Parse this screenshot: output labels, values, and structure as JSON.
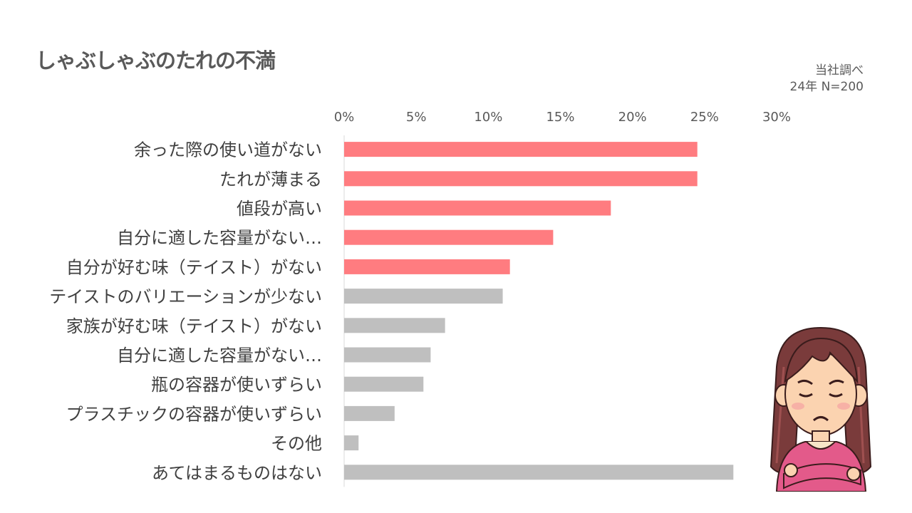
{
  "title": "しゃぶしゃぶのたれの不満",
  "source": {
    "line1": "当社調べ",
    "line2": "24年 N=200"
  },
  "colors": {
    "highlight": "#FF7C80",
    "normal": "#BFBFBF",
    "axis": "#D9D9D9"
  },
  "chart_data": {
    "type": "bar",
    "orientation": "horizontal",
    "title": "",
    "xlabel": "",
    "ylabel": "",
    "xlim": [
      0,
      30
    ],
    "xticks": [
      "0%",
      "5%",
      "10%",
      "15%",
      "20%",
      "25%",
      "30%"
    ],
    "tick_values": [
      0,
      5,
      10,
      15,
      20,
      25,
      30
    ],
    "axis_position": "top",
    "grid": false,
    "categories": [
      "余った際の使い道がない",
      "たれが薄まる",
      "値段が高い",
      "自分に適した容量がない…",
      "自分が好む味（テイスト）がない",
      "テイストのバリエーションが少ない",
      "家族が好む味（テイスト）がない",
      "自分に適した容量がない…",
      "瓶の容器が使いずらい",
      "プラスチックの容器が使いずらい",
      "その他",
      "あてはまるものはない"
    ],
    "values": [
      24.5,
      24.5,
      18.5,
      14.5,
      11.5,
      11.0,
      7.0,
      6.0,
      5.5,
      3.5,
      1.0,
      27.0
    ],
    "highlighted": [
      true,
      true,
      true,
      true,
      true,
      false,
      false,
      false,
      false,
      false,
      false,
      false
    ]
  }
}
